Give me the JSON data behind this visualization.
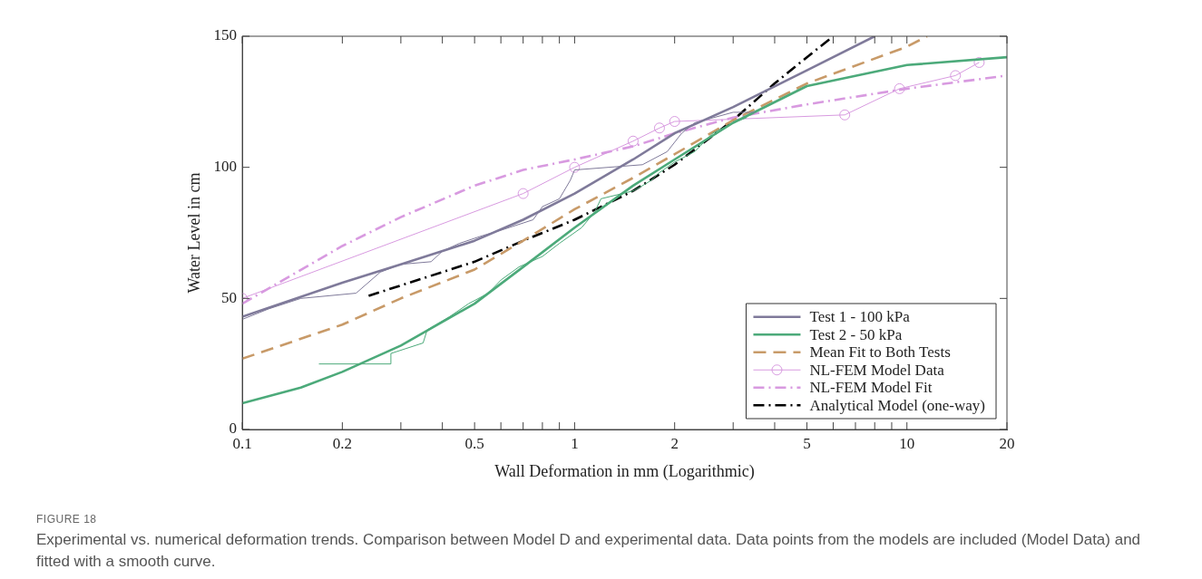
{
  "chart_data": {
    "type": "line",
    "xlabel": "Wall Deformation in mm (Logarithmic)",
    "ylabel": "Water Level in cm",
    "log": "x",
    "grid": false,
    "legend": "bottom right",
    "xlim": [
      0.1,
      20
    ],
    "ylim": [
      0,
      150
    ],
    "xticks": [
      0.1,
      0.2,
      {
        "value": 0.3,
        "label": null
      },
      {
        "value": 0.4,
        "label": null
      },
      0.5,
      {
        "value": 0.6,
        "label": null
      },
      {
        "value": 0.7,
        "label": null
      },
      {
        "value": 0.8,
        "label": null
      },
      {
        "value": 0.9,
        "label": null
      },
      1,
      2,
      {
        "value": 3,
        "label": null
      },
      {
        "value": 4,
        "label": null
      },
      5,
      {
        "value": 6,
        "label": null
      },
      {
        "value": 7,
        "label": null
      },
      {
        "value": 8,
        "label": null
      },
      {
        "value": 9,
        "label": null
      },
      10,
      20
    ],
    "yticks": [
      0,
      50,
      100,
      150
    ],
    "series": [
      {
        "color": "#7f7a9a",
        "line_style": "solid",
        "marker": "none",
        "x": [
          0.1,
          0.12,
          0.15,
          0.22,
          0.26,
          0.3,
          0.37,
          0.4,
          0.45,
          0.53,
          0.6,
          0.75,
          0.8,
          0.9,
          0.97,
          1,
          1.6,
          1.9,
          2.1,
          2.3,
          3,
          3.5
        ],
        "values": [
          42,
          46,
          50,
          52,
          60,
          63,
          64,
          68,
          71,
          74,
          76,
          80,
          85,
          88,
          95,
          99,
          101,
          106,
          113,
          117,
          121,
          121
        ]
      },
      {
        "color": "#4caa7a",
        "line_style": "solid",
        "marker": "none",
        "x": [
          0.17,
          0.28,
          0.28,
          0.35,
          0.36,
          0.42,
          0.48,
          0.55,
          0.6,
          0.68,
          0.8,
          0.9,
          1.05,
          1.15,
          1.2,
          1.5,
          1.6,
          1.7,
          1.8,
          2,
          2.3,
          2.6,
          3,
          3.3
        ],
        "values": [
          25,
          25,
          29,
          33,
          38,
          43,
          48,
          52,
          57,
          62,
          66,
          71,
          77,
          83,
          88,
          91,
          93,
          95,
          98,
          102,
          106,
          113,
          117,
          119
        ]
      },
      {
        "name": "Test 1 - 100 kPa",
        "color": "#7f7a9a",
        "line_style": "solid",
        "marker": "none",
        "x": [
          0.1,
          0.2,
          0.3,
          0.5,
          0.7,
          1,
          1.5,
          2,
          3,
          5,
          8
        ],
        "values": [
          43,
          56,
          63,
          72,
          80,
          90,
          103,
          113,
          123,
          137,
          150
        ]
      },
      {
        "name": "Test 2 - 50 kPa",
        "color": "#4caa7a",
        "line_style": "solid",
        "marker": "none",
        "x": [
          0.1,
          0.15,
          0.2,
          0.3,
          0.5,
          0.7,
          1,
          1.5,
          2,
          3,
          5,
          10,
          20
        ],
        "values": [
          10,
          16,
          22,
          32,
          48,
          62,
          77,
          93,
          103,
          117,
          131,
          139,
          142
        ]
      },
      {
        "name": "Mean Fit to Both Tests",
        "color": "#c89a68",
        "line_style": "dashed",
        "marker": "none",
        "x": [
          0.1,
          0.2,
          0.3,
          0.5,
          0.7,
          1,
          1.5,
          2,
          3,
          5,
          10,
          11.5
        ],
        "values": [
          27,
          40,
          50,
          61,
          72,
          84,
          96,
          105,
          118,
          132,
          146,
          150
        ]
      },
      {
        "name": "NL-FEM Model Data",
        "color": "#d89ae0",
        "line_style": "solid",
        "marker": "circle",
        "x": [
          0.1,
          0.7,
          1,
          1.5,
          1.8,
          2,
          6.5,
          9.5,
          14,
          16.5
        ],
        "values": [
          50,
          90,
          100,
          110,
          115,
          117.5,
          120,
          130,
          135,
          140
        ]
      },
      {
        "name": "NL-FEM Model Fit",
        "color": "#d89ae0",
        "line_style": "dashdot",
        "marker": "none",
        "x": [
          0.1,
          0.2,
          0.3,
          0.5,
          0.7,
          1,
          1.5,
          2,
          3,
          5,
          10,
          20
        ],
        "values": [
          48,
          70,
          81,
          93,
          99,
          103,
          108,
          113,
          119,
          124,
          130,
          135
        ]
      },
      {
        "name": "Analytical Model (one-way)",
        "color": "#000000",
        "line_style": "dashdot",
        "marker": "none",
        "x": [
          0.24,
          0.5,
          0.7,
          1,
          1.5,
          2,
          3,
          4,
          5,
          6
        ],
        "values": [
          51,
          64,
          72,
          80,
          91,
          101,
          118,
          132,
          142,
          150
        ]
      }
    ],
    "annotations": [
      "FIGURE 18",
      "Experimental vs. numerical deformation trends. Comparison between Model D and experimental data. Data points from the models are included (Model Data) and fitted with a smooth curve."
    ]
  }
}
